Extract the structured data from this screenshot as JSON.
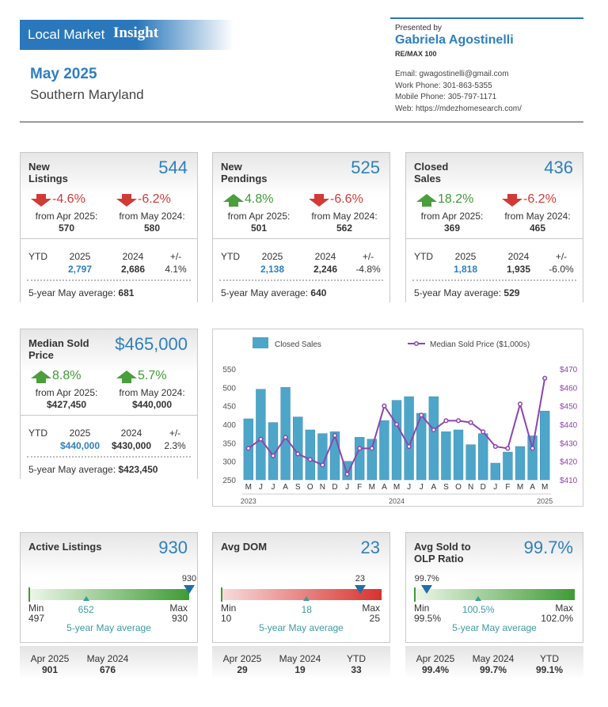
{
  "header": {
    "brand": "Local Market",
    "brand_bold": "Insight",
    "date": "May 2025",
    "region": "Southern Maryland",
    "presented_by": "Presented by",
    "agent": "Gabriela Agostinelli",
    "company": "RE/MAX 100",
    "email": "Email: gwagostinelli@gmail.com",
    "work_phone": "Work Phone: 301-863-5355",
    "mobile_phone": "Mobile Phone: 305-797-1171",
    "web": "Web: https://mdezhomesearch.com/"
  },
  "stat_cards": [
    {
      "title": "New Listings",
      "value": 544,
      "changes": [
        {
          "pct": "-4.6%",
          "direction": "down",
          "from": "from Apr 2025:",
          "value": 570
        },
        {
          "pct": "-6.2%",
          "direction": "down",
          "from": "from May 2024:",
          "value": 580
        }
      ],
      "ytd": {
        "label": "YTD",
        "headers": [
          "2025",
          "2024",
          "+/-"
        ],
        "values": [
          "2,797",
          "2,686",
          "4.1%"
        ]
      },
      "average": {
        "label": "5-year May average:",
        "value": 681
      }
    },
    {
      "title": "New Pendings",
      "value": 525,
      "changes": [
        {
          "pct": "4.8%",
          "direction": "up",
          "from": "from Apr 2025:",
          "value": 501
        },
        {
          "pct": "-6.6%",
          "direction": "down",
          "from": "from May 2024:",
          "value": 562
        }
      ],
      "ytd": {
        "label": "YTD",
        "headers": [
          "2025",
          "2024",
          "+/-"
        ],
        "values": [
          "2,138",
          "2,246",
          "-4.8%"
        ]
      },
      "average": {
        "label": "5-year May average:",
        "value": 640
      }
    },
    {
      "title": "Closed Sales",
      "value": 436,
      "changes": [
        {
          "pct": "18.2%",
          "direction": "up",
          "from": "from Apr 2025:",
          "value": 369
        },
        {
          "pct": "-6.2%",
          "direction": "down",
          "from": "from May 2024:",
          "value": 465
        }
      ],
      "ytd": {
        "label": "YTD",
        "headers": [
          "2025",
          "2024",
          "+/-"
        ],
        "values": [
          "1,818",
          "1,935",
          "-6.0%"
        ]
      },
      "average": {
        "label": "5-year May average:",
        "value": 529
      }
    },
    {
      "title": "Median Sold Price",
      "value": "$465,000",
      "changes": [
        {
          "pct": "8.8%",
          "direction": "up",
          "from": "from Apr 2025:",
          "value": "$427,450"
        },
        {
          "pct": "5.7%",
          "direction": "up",
          "from": "from May 2024:",
          "value": "$440,000"
        }
      ],
      "ytd": {
        "label": "YTD",
        "headers": [
          "2025",
          "2024",
          "+/-"
        ],
        "values": [
          "$440,000",
          "$430,000",
          "2.3%"
        ]
      },
      "average": {
        "label": "5-year May average:",
        "value": "$423,450"
      }
    }
  ],
  "chart_data": {
    "type": "bar",
    "categories": [
      "M",
      "J",
      "J",
      "A",
      "S",
      "O",
      "N",
      "D",
      "J",
      "F",
      "M",
      "A",
      "M",
      "J",
      "J",
      "A",
      "S",
      "O",
      "N",
      "D",
      "J",
      "F",
      "M",
      "A",
      "M"
    ],
    "year_labels": [
      "2023",
      null,
      null,
      null,
      null,
      null,
      null,
      null,
      null,
      null,
      null,
      null,
      "2024",
      null,
      null,
      null,
      null,
      null,
      null,
      null,
      null,
      null,
      null,
      null,
      "2025"
    ],
    "series": [
      {
        "name": "Closed Sales",
        "type": "bar",
        "color": "#4da6c9",
        "values": [
          415,
          495,
          405,
          500,
          420,
          385,
          375,
          380,
          300,
          365,
          360,
          410,
          465,
          475,
          430,
          475,
          380,
          385,
          345,
          375,
          295,
          325,
          340,
          369,
          436
        ]
      },
      {
        "name": "Median Sold Price ($1,000s)",
        "type": "line",
        "axis": "y2",
        "color": "#8e44ad",
        "values": [
          427,
          432,
          423,
          433,
          424,
          421,
          418,
          434,
          413,
          427,
          427,
          450,
          440,
          428,
          445,
          437,
          442,
          442,
          441,
          436,
          428,
          427,
          451,
          427,
          465
        ]
      }
    ],
    "ylim": [
      250,
      550
    ],
    "yticks": [
      250,
      300,
      350,
      400,
      450,
      500,
      550
    ],
    "y2lim": [
      410,
      470
    ],
    "y2ticks": [
      {
        "value": 410,
        "label": "$410"
      },
      {
        "value": 420,
        "label": "$420"
      },
      {
        "value": 430,
        "label": "$430"
      },
      {
        "value": 440,
        "label": "$440"
      },
      {
        "value": 450,
        "label": "$450"
      },
      {
        "value": 460,
        "label": "$460"
      },
      {
        "value": 470,
        "label": "$470"
      }
    ],
    "grid": false
  },
  "gauge_cards": [
    {
      "title": "Active Listings",
      "value": 930,
      "color": "green",
      "gauge": {
        "min": 497,
        "max": 930,
        "current": 930,
        "average": 652
      },
      "min_label": "Min",
      "max_label": "Max",
      "average_label": "5-year May average",
      "footer": [
        {
          "label": "Apr 2025",
          "value": 901
        },
        {
          "label": "May 2024",
          "value": 676
        }
      ]
    },
    {
      "title": "Avg DOM",
      "value": 23,
      "color": "red",
      "gauge": {
        "min": 10,
        "max": 25,
        "current": 23,
        "average": 18
      },
      "min_label": "Min",
      "max_label": "Max",
      "average_label": "5-year May average",
      "footer": [
        {
          "label": "Apr 2025",
          "value": 29
        },
        {
          "label": "May 2024",
          "value": 19
        },
        {
          "label": "YTD",
          "value": 33
        }
      ]
    },
    {
      "title": "Avg Sold to OLP Ratio",
      "value": "99.7%",
      "color": "green",
      "gauge": {
        "min": {
          "value": 99.5,
          "label": "99.5%"
        },
        "max": {
          "value": 102,
          "label": "102.0%"
        },
        "current": {
          "value": 99.7,
          "label": "99.7%"
        },
        "average": {
          "value": 100.5,
          "label": "100.5%"
        }
      },
      "min_label": "Min",
      "max_label": "Max",
      "average_label": "5-year May average",
      "footer": [
        {
          "label": "Apr 2025",
          "value": "99.4%"
        },
        {
          "label": "May 2024",
          "value": "99.7%"
        },
        {
          "label": "YTD",
          "value": "99.1%"
        }
      ]
    }
  ]
}
